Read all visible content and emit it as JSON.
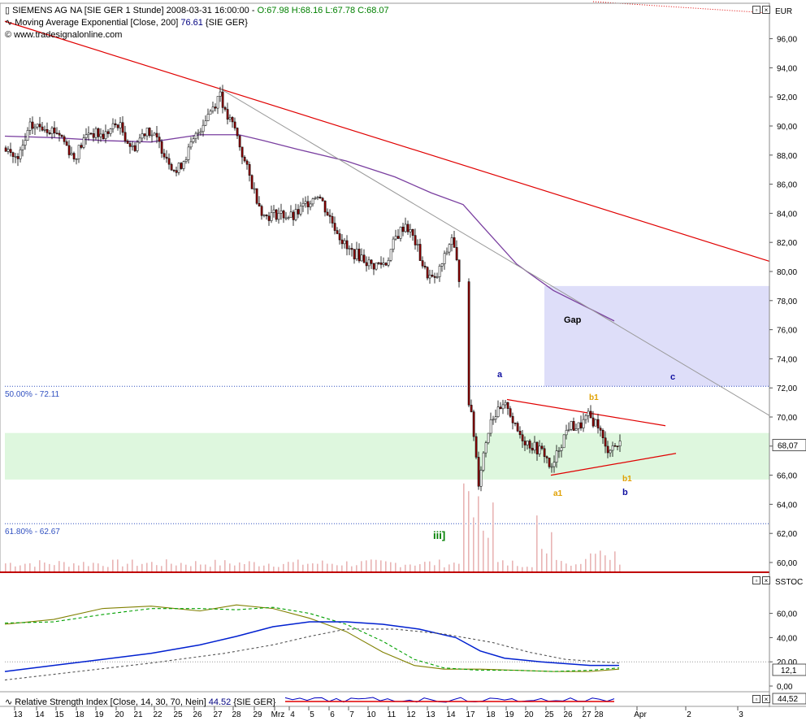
{
  "header": {
    "symbol_line": "SIEMENS AG NA [SIE GER  1 Stunde] 2008-03-31 16:00:00 - ",
    "ohlc": "O:67.98 H:68.16 L:67.78 C:68.07",
    "ema_line": "Moving Average Exponential [Close, 200] ",
    "ema_value": "76.61",
    "ema_suffix": " {SIE GER}",
    "source": "www.tradesignalonline.com",
    "currency": "EUR"
  },
  "colors": {
    "candle_up": "#ffffff",
    "candle_down": "#8b0000",
    "ema": "#7a3fa0",
    "trend_red": "#e00000",
    "gap_box": "#c8c8f5",
    "support_box": "#d6f5d6",
    "fib_line": "#3050c0",
    "volume": "#e8b4b4",
    "stoch_k": "#808000",
    "stoch_d": "#00a000",
    "blue_line": "#0020d0",
    "grey_dash": "#555555",
    "pane_border": "#c00000"
  },
  "chart_data": [
    {
      "type": "candlestick",
      "title": "SIEMENS AG NA [SIE GER  1 Stunde]",
      "ylabel": "EUR",
      "ylim": [
        59,
        97.5
      ],
      "y_ticks": [
        "96,00",
        "94,00",
        "92,00",
        "90,00",
        "88,00",
        "86,00",
        "84,00",
        "82,00",
        "80,00",
        "78,00",
        "76,00",
        "74,00",
        "72,00",
        "70,00",
        "68,00",
        "66,00",
        "64,00",
        "62,00",
        "60,00"
      ],
      "last_price_label": "68,07",
      "close_series": [
        {
          "i": 0,
          "c": 88.5
        },
        {
          "i": 5,
          "c": 87.6
        },
        {
          "i": 10,
          "c": 89.9
        },
        {
          "i": 16,
          "c": 90.0
        },
        {
          "i": 22,
          "c": 89.5
        },
        {
          "i": 28,
          "c": 87.8
        },
        {
          "i": 34,
          "c": 89.6
        },
        {
          "i": 40,
          "c": 89.3
        },
        {
          "i": 46,
          "c": 90.2
        },
        {
          "i": 52,
          "c": 88.4
        },
        {
          "i": 58,
          "c": 89.9
        },
        {
          "i": 64,
          "c": 88.5
        },
        {
          "i": 70,
          "c": 86.8
        },
        {
          "i": 76,
          "c": 88.6
        },
        {
          "i": 82,
          "c": 90.6
        },
        {
          "i": 86,
          "c": 91.6
        },
        {
          "i": 88,
          "c": 92.4
        },
        {
          "i": 90,
          "c": 90.8
        },
        {
          "i": 94,
          "c": 89.8
        },
        {
          "i": 98,
          "c": 87.5
        },
        {
          "i": 102,
          "c": 85.5
        },
        {
          "i": 106,
          "c": 83.8
        },
        {
          "i": 112,
          "c": 84.0
        },
        {
          "i": 118,
          "c": 83.7
        },
        {
          "i": 124,
          "c": 84.8
        },
        {
          "i": 128,
          "c": 85.4
        },
        {
          "i": 132,
          "c": 84.0
        },
        {
          "i": 136,
          "c": 82.8
        },
        {
          "i": 140,
          "c": 81.5
        },
        {
          "i": 146,
          "c": 81.0
        },
        {
          "i": 150,
          "c": 80.4
        },
        {
          "i": 156,
          "c": 80.6
        },
        {
          "i": 160,
          "c": 82.3
        },
        {
          "i": 164,
          "c": 83.3
        },
        {
          "i": 168,
          "c": 82.0
        },
        {
          "i": 172,
          "c": 80.0
        },
        {
          "i": 176,
          "c": 79.3
        },
        {
          "i": 180,
          "c": 80.9
        },
        {
          "i": 183,
          "c": 82.4
        },
        {
          "i": 186,
          "c": 79.6
        },
        {
          "i": 190,
          "c": 71.2
        },
        {
          "i": 192,
          "c": 68.8
        },
        {
          "i": 194,
          "c": 65.6
        },
        {
          "i": 196,
          "c": 67.5
        },
        {
          "i": 199,
          "c": 70.0
        },
        {
          "i": 203,
          "c": 70.4
        },
        {
          "i": 206,
          "c": 70.8
        },
        {
          "i": 209,
          "c": 69.2
        },
        {
          "i": 213,
          "c": 68.4
        },
        {
          "i": 217,
          "c": 67.9
        },
        {
          "i": 221,
          "c": 67.5
        },
        {
          "i": 224,
          "c": 66.3
        },
        {
          "i": 227,
          "c": 67.9
        },
        {
          "i": 231,
          "c": 69.4
        },
        {
          "i": 235,
          "c": 69.3
        },
        {
          "i": 239,
          "c": 70.0
        },
        {
          "i": 243,
          "c": 69.5
        },
        {
          "i": 246,
          "c": 67.8
        },
        {
          "i": 249,
          "c": 68.0
        },
        {
          "i": 252,
          "c": 68.1
        }
      ],
      "ema_200": [
        {
          "i": 0,
          "v": 89.3
        },
        {
          "i": 20,
          "v": 89.2
        },
        {
          "i": 40,
          "v": 89.0
        },
        {
          "i": 60,
          "v": 88.9
        },
        {
          "i": 80,
          "v": 89.4
        },
        {
          "i": 96,
          "v": 89.4
        },
        {
          "i": 106,
          "v": 89.0
        },
        {
          "i": 120,
          "v": 88.4
        },
        {
          "i": 140,
          "v": 87.6
        },
        {
          "i": 160,
          "v": 86.5
        },
        {
          "i": 175,
          "v": 85.4
        },
        {
          "i": 188,
          "v": 84.6
        },
        {
          "i": 196,
          "v": 83.1
        },
        {
          "i": 210,
          "v": 80.5
        },
        {
          "i": 225,
          "v": 78.7
        },
        {
          "i": 250,
          "v": 76.6
        }
      ],
      "fib_levels": [
        {
          "label": "50.00% - 72.11",
          "value": 72.11
        },
        {
          "label": "61.80% - 62.67",
          "value": 62.67
        }
      ],
      "gap_zone": {
        "label": "Gap",
        "from": 72.1,
        "to": 79.0
      },
      "support_zone": {
        "from": 65.7,
        "to": 68.9
      },
      "annotations": {
        "wave_a": "a",
        "wave_c": "c",
        "wave_b1_top": "b1",
        "wave_b1_bottom": "b1",
        "wave_a1": "a1",
        "wave_b": "b",
        "wave_iii": "iii]"
      },
      "x_ticks": [
        "13",
        "14",
        "15",
        "18",
        "19",
        "20",
        "21",
        "22",
        "25",
        "26",
        "27",
        "28",
        "29",
        "Mrz",
        "4",
        "5",
        "6",
        "7",
        "10",
        "11",
        "12",
        "13",
        "14",
        "17",
        "18",
        "19",
        "20",
        "25",
        "26",
        "27",
        "28",
        "Apr",
        "2",
        "3"
      ]
    },
    {
      "type": "line",
      "title": "SSTOC",
      "ylim": [
        0,
        80
      ],
      "y_ticks": [
        "60,00",
        "40,00",
        "20,00",
        "0,00"
      ],
      "last_value_label": "12,1",
      "series": [
        {
          "values": [
            {
              "i": 0,
              "v": 51
            },
            {
              "i": 20,
              "v": 55
            },
            {
              "i": 40,
              "v": 64
            },
            {
              "i": 60,
              "v": 66
            },
            {
              "i": 80,
              "v": 62
            },
            {
              "i": 95,
              "v": 67
            },
            {
              "i": 110,
              "v": 64
            },
            {
              "i": 125,
              "v": 56
            },
            {
              "i": 140,
              "v": 45
            },
            {
              "i": 155,
              "v": 28
            },
            {
              "i": 168,
              "v": 17
            },
            {
              "i": 180,
              "v": 14
            },
            {
              "i": 195,
              "v": 14
            },
            {
              "i": 210,
              "v": 13
            },
            {
              "i": 225,
              "v": 12
            },
            {
              "i": 240,
              "v": 12
            },
            {
              "i": 252,
              "v": 14
            }
          ]
        },
        {
          "values": [
            {
              "i": 0,
              "v": 52
            },
            {
              "i": 20,
              "v": 53
            },
            {
              "i": 40,
              "v": 59
            },
            {
              "i": 60,
              "v": 64
            },
            {
              "i": 80,
              "v": 64
            },
            {
              "i": 95,
              "v": 63
            },
            {
              "i": 110,
              "v": 65
            },
            {
              "i": 125,
              "v": 60
            },
            {
              "i": 140,
              "v": 51
            },
            {
              "i": 155,
              "v": 37
            },
            {
              "i": 168,
              "v": 22
            },
            {
              "i": 180,
              "v": 15
            },
            {
              "i": 195,
              "v": 13
            },
            {
              "i": 210,
              "v": 13
            },
            {
              "i": 225,
              "v": 12
            },
            {
              "i": 240,
              "v": 13
            },
            {
              "i": 252,
              "v": 15
            }
          ]
        },
        {
          "values": [
            {
              "i": 0,
              "v": 12
            },
            {
              "i": 20,
              "v": 17
            },
            {
              "i": 40,
              "v": 22
            },
            {
              "i": 60,
              "v": 27
            },
            {
              "i": 80,
              "v": 34
            },
            {
              "i": 95,
              "v": 41
            },
            {
              "i": 110,
              "v": 49
            },
            {
              "i": 125,
              "v": 53
            },
            {
              "i": 140,
              "v": 53
            },
            {
              "i": 155,
              "v": 51
            },
            {
              "i": 170,
              "v": 47
            },
            {
              "i": 185,
              "v": 40
            },
            {
              "i": 195,
              "v": 29
            },
            {
              "i": 205,
              "v": 23
            },
            {
              "i": 220,
              "v": 20
            },
            {
              "i": 240,
              "v": 17
            },
            {
              "i": 252,
              "v": 17
            }
          ]
        },
        {
          "values": [
            {
              "i": 0,
              "v": 5
            },
            {
              "i": 30,
              "v": 12
            },
            {
              "i": 60,
              "v": 19
            },
            {
              "i": 90,
              "v": 27
            },
            {
              "i": 110,
              "v": 34
            },
            {
              "i": 125,
              "v": 41
            },
            {
              "i": 140,
              "v": 47
            },
            {
              "i": 160,
              "v": 47
            },
            {
              "i": 180,
              "v": 43
            },
            {
              "i": 200,
              "v": 36
            },
            {
              "i": 215,
              "v": 28
            },
            {
              "i": 230,
              "v": 22
            },
            {
              "i": 252,
              "v": 19
            }
          ]
        }
      ]
    },
    {
      "type": "line",
      "title": "Relative Strength Index [Close, 14, 30, 70, Nein]",
      "value": "44.52",
      "value_suffix": " {SIE GER}",
      "last_value_label": "44,52"
    }
  ]
}
